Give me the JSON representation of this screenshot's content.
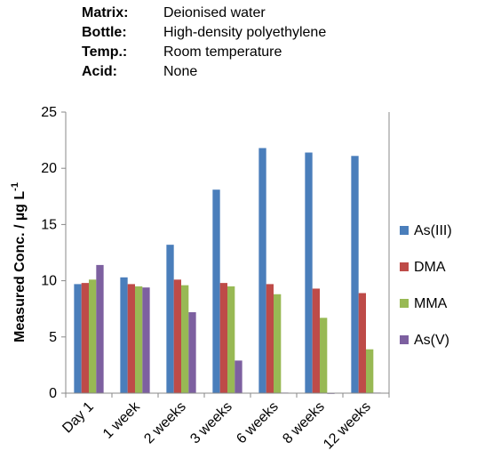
{
  "conditions": [
    {
      "label": "Matrix:",
      "value": "Deionised water"
    },
    {
      "label": "Bottle:",
      "value": "High-density polyethylene"
    },
    {
      "label": "Temp.:",
      "value": "Room temperature"
    },
    {
      "label": "Acid:",
      "value": "None"
    }
  ],
  "chart_data": {
    "type": "bar",
    "categories": [
      "Day 1",
      "1 week",
      "2 weeks",
      "3 weeks",
      "6 weeks",
      "8 weeks",
      "12 weeks"
    ],
    "series": [
      {
        "name": "As(III)",
        "color": "#4a7ebb",
        "values": [
          9.7,
          10.3,
          13.2,
          18.1,
          21.8,
          21.4,
          21.1
        ]
      },
      {
        "name": "DMA",
        "color": "#be4b48",
        "values": [
          9.8,
          9.7,
          10.1,
          9.8,
          9.7,
          9.3,
          8.9
        ]
      },
      {
        "name": "MMA",
        "color": "#98b954",
        "values": [
          10.1,
          9.5,
          9.6,
          9.5,
          8.8,
          6.7,
          3.9
        ]
      },
      {
        "name": "As(V)",
        "color": "#7d60a0",
        "values": [
          11.4,
          9.4,
          7.2,
          2.9,
          0.05,
          0,
          0.05
        ]
      }
    ],
    "title": "",
    "xlabel": "",
    "ylabel_main": "Measured Conc. / µg L",
    "ylabel_sup": "-1",
    "ylim": [
      0,
      25
    ],
    "yticks": [
      0,
      5,
      10,
      15,
      20,
      25
    ],
    "grid": false,
    "legend_position": "right"
  }
}
